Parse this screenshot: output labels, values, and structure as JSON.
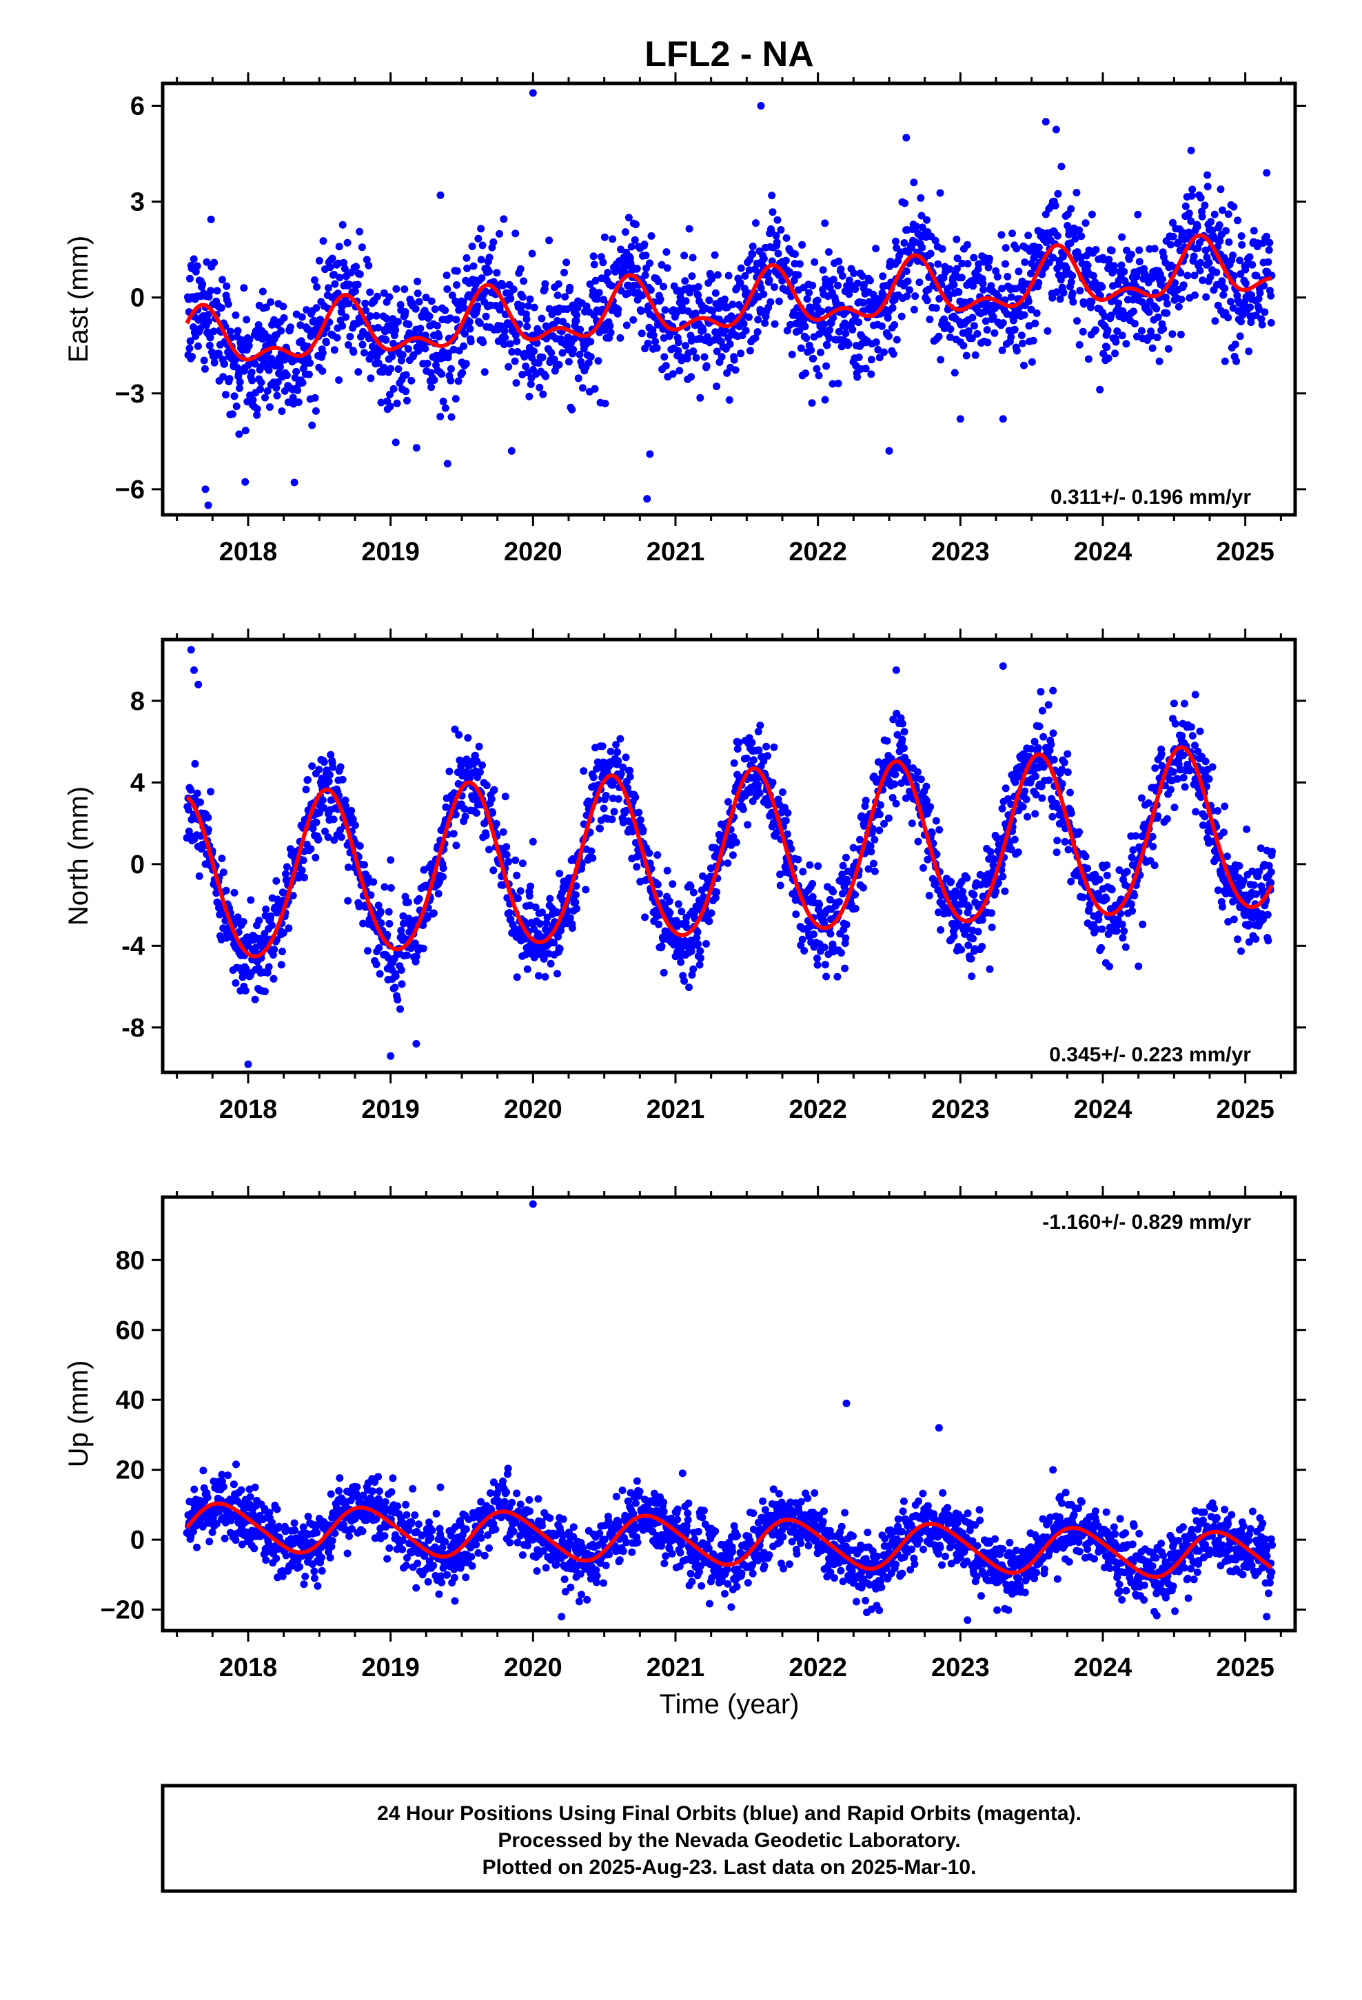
{
  "title": "LFL2 - NA",
  "xlabel": "Time (year)",
  "colors": {
    "points": "#0000ff",
    "fit": "#ff0000",
    "frame": "#000000"
  },
  "footer": {
    "line1": "24 Hour Positions Using Final Orbits (blue) and Rapid Orbits (magenta).",
    "line2": "Processed by the Nevada Geodetic Laboratory.",
    "line3": "Plotted on 2025-Aug-23. Last data on 2025-Mar-10."
  },
  "chart_data": [
    {
      "type": "scatter",
      "name": "east",
      "ylabel": "East (mm)",
      "rate_text": "0.311+/- 0.196 mm/yr",
      "rate_position": "bottom-right",
      "xlim": [
        2017.4,
        2025.35
      ],
      "ylim": [
        -6.8,
        6.7
      ],
      "yticks": [
        -6,
        -3,
        0,
        3,
        6
      ],
      "ytick_labels": [
        "−6",
        "−3",
        "0",
        "3",
        "6"
      ],
      "xticks": [
        2018,
        2019,
        2020,
        2021,
        2022,
        2023,
        2024,
        2025
      ],
      "xtick_labels": [
        "2018",
        "2019",
        "2020",
        "2021",
        "2022",
        "2023",
        "2024",
        "2025"
      ],
      "grid": false,
      "data_range": [
        2017.57,
        2025.19
      ],
      "trend": {
        "rate_mm_per_yr": 0.311,
        "value_at_2021": -0.4
      },
      "seasonal": {
        "annual_amp": 0.75,
        "annual_phase_year": 0.68,
        "semiannual_amp": 0.45,
        "semiannual_phase_year": 0.18
      },
      "scatter_sd": 0.95,
      "points_per_year": 330,
      "outliers": [
        [
          2017.7,
          -6.0
        ],
        [
          2017.72,
          -6.5
        ],
        [
          2019.4,
          -5.2
        ],
        [
          2019.85,
          -4.8
        ],
        [
          2020.0,
          6.4
        ],
        [
          2020.8,
          -6.3
        ],
        [
          2020.82,
          -4.9
        ],
        [
          2021.6,
          6.0
        ],
        [
          2022.05,
          -3.2
        ],
        [
          2022.5,
          -4.8
        ],
        [
          2022.62,
          5.0
        ],
        [
          2023.0,
          -3.8
        ],
        [
          2023.3,
          -3.8
        ],
        [
          2023.6,
          5.5
        ],
        [
          2024.62,
          4.6
        ],
        [
          2025.15,
          3.9
        ],
        [
          2019.35,
          3.2
        ]
      ]
    },
    {
      "type": "scatter",
      "name": "north",
      "ylabel": "North (mm)",
      "rate_text": "0.345+/- 0.223 mm/yr",
      "rate_position": "bottom-right",
      "xlim": [
        2017.4,
        2025.35
      ],
      "ylim": [
        -10.2,
        11.0
      ],
      "yticks": [
        -8,
        -4,
        0,
        4,
        8
      ],
      "ytick_labels": [
        "-8",
        "-4",
        "0",
        "4",
        "8"
      ],
      "xticks": [
        2018,
        2019,
        2020,
        2021,
        2022,
        2023,
        2024,
        2025
      ],
      "xtick_labels": [
        "2018",
        "2019",
        "2020",
        "2021",
        "2022",
        "2023",
        "2024",
        "2025"
      ],
      "grid": false,
      "data_range": [
        2017.57,
        2025.19
      ],
      "trend": {
        "rate_mm_per_yr": 0.345,
        "value_at_2021": 0.2
      },
      "seasonal": {
        "annual_amp": 4.0,
        "annual_phase_year": 0.55,
        "semiannual_amp": 0.3,
        "semiannual_phase_year": 0.05
      },
      "scatter_sd": 1.1,
      "points_per_year": 330,
      "outliers": [
        [
          2017.6,
          10.5
        ],
        [
          2017.62,
          9.5
        ],
        [
          2017.65,
          8.8
        ],
        [
          2018.0,
          -9.8
        ],
        [
          2019.0,
          -9.4
        ],
        [
          2019.18,
          -8.8
        ],
        [
          2019.0,
          0.2
        ],
        [
          2020.0,
          1.1
        ],
        [
          2022.55,
          9.5
        ],
        [
          2023.3,
          9.7
        ],
        [
          2023.65,
          8.5
        ],
        [
          2024.65,
          8.3
        ],
        [
          2024.25,
          -5.0
        ]
      ]
    },
    {
      "type": "scatter",
      "name": "up",
      "ylabel": "Up (mm)",
      "rate_text": "-1.160+/- 0.829 mm/yr",
      "rate_position": "top-right",
      "xlim": [
        2017.4,
        2025.35
      ],
      "ylim": [
        -26,
        98
      ],
      "yticks": [
        -20,
        0,
        20,
        40,
        60,
        80
      ],
      "ytick_labels": [
        "−20",
        "0",
        "20",
        "40",
        "60",
        "80"
      ],
      "xticks": [
        2018,
        2019,
        2020,
        2021,
        2022,
        2023,
        2024,
        2025
      ],
      "xtick_labels": [
        "2018",
        "2019",
        "2020",
        "2021",
        "2022",
        "2023",
        "2024",
        "2025"
      ],
      "grid": false,
      "data_range": [
        2017.57,
        2025.19
      ],
      "trend": {
        "rate_mm_per_yr": -1.16,
        "value_at_2021": 0.0
      },
      "seasonal": {
        "annual_amp": 6.5,
        "annual_phase_year": 0.83,
        "semiannual_amp": 0.8,
        "semiannual_phase_year": 0.2
      },
      "scatter_sd": 4.5,
      "points_per_year": 330,
      "outliers": [
        [
          2020.0,
          96
        ],
        [
          2022.2,
          39
        ],
        [
          2022.85,
          32
        ],
        [
          2023.65,
          20
        ],
        [
          2021.05,
          19
        ],
        [
          2025.15,
          -22
        ],
        [
          2020.2,
          -22
        ],
        [
          2023.05,
          -23
        ],
        [
          2019.35,
          15
        ]
      ]
    }
  ]
}
